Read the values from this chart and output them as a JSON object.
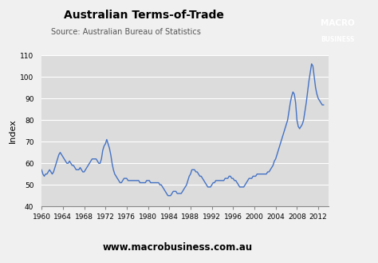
{
  "title": "Australian Terms-of-Trade",
  "subtitle": "Source: Australian Bureau of Statistics",
  "ylabel": "Index",
  "website": "www.macrobusiness.com.au",
  "line_color": "#4472C4",
  "bg_color": "#DCDCDC",
  "fig_color": "#F0F0F0",
  "ylim": [
    40,
    110
  ],
  "yticks": [
    40,
    50,
    60,
    70,
    80,
    90,
    100,
    110
  ],
  "xlim": [
    1960,
    2014
  ],
  "xticks": [
    1960,
    1964,
    1968,
    1972,
    1976,
    1980,
    1984,
    1988,
    1992,
    1996,
    2000,
    2004,
    2008,
    2012
  ],
  "logo_color": "#CC1111",
  "years": [
    1960.0,
    1960.25,
    1960.5,
    1960.75,
    1961.0,
    1961.25,
    1961.5,
    1961.75,
    1962.0,
    1962.25,
    1962.5,
    1962.75,
    1963.0,
    1963.25,
    1963.5,
    1963.75,
    1964.0,
    1964.25,
    1964.5,
    1964.75,
    1965.0,
    1965.25,
    1965.5,
    1965.75,
    1966.0,
    1966.25,
    1966.5,
    1966.75,
    1967.0,
    1967.25,
    1967.5,
    1967.75,
    1968.0,
    1968.25,
    1968.5,
    1968.75,
    1969.0,
    1969.25,
    1969.5,
    1969.75,
    1970.0,
    1970.25,
    1970.5,
    1970.75,
    1971.0,
    1971.25,
    1971.5,
    1971.75,
    1972.0,
    1972.25,
    1972.5,
    1972.75,
    1973.0,
    1973.25,
    1973.5,
    1973.75,
    1974.0,
    1974.25,
    1974.5,
    1974.75,
    1975.0,
    1975.25,
    1975.5,
    1975.75,
    1976.0,
    1976.25,
    1976.5,
    1976.75,
    1977.0,
    1977.25,
    1977.5,
    1977.75,
    1978.0,
    1978.25,
    1978.5,
    1978.75,
    1979.0,
    1979.25,
    1979.5,
    1979.75,
    1980.0,
    1980.25,
    1980.5,
    1980.75,
    1981.0,
    1981.25,
    1981.5,
    1981.75,
    1982.0,
    1982.25,
    1982.5,
    1982.75,
    1983.0,
    1983.25,
    1983.5,
    1983.75,
    1984.0,
    1984.25,
    1984.5,
    1984.75,
    1985.0,
    1985.25,
    1985.5,
    1985.75,
    1986.0,
    1986.25,
    1986.5,
    1986.75,
    1987.0,
    1987.25,
    1987.5,
    1987.75,
    1988.0,
    1988.25,
    1988.5,
    1988.75,
    1989.0,
    1989.25,
    1989.5,
    1989.75,
    1990.0,
    1990.25,
    1990.5,
    1990.75,
    1991.0,
    1991.25,
    1991.5,
    1991.75,
    1992.0,
    1992.25,
    1992.5,
    1992.75,
    1993.0,
    1993.25,
    1993.5,
    1993.75,
    1994.0,
    1994.25,
    1994.5,
    1994.75,
    1995.0,
    1995.25,
    1995.5,
    1995.75,
    1996.0,
    1996.25,
    1996.5,
    1996.75,
    1997.0,
    1997.25,
    1997.5,
    1997.75,
    1998.0,
    1998.25,
    1998.5,
    1998.75,
    1999.0,
    1999.25,
    1999.5,
    1999.75,
    2000.0,
    2000.25,
    2000.5,
    2000.75,
    2001.0,
    2001.25,
    2001.5,
    2001.75,
    2002.0,
    2002.25,
    2002.5,
    2002.75,
    2003.0,
    2003.25,
    2003.5,
    2003.75,
    2004.0,
    2004.25,
    2004.5,
    2004.75,
    2005.0,
    2005.25,
    2005.5,
    2005.75,
    2006.0,
    2006.25,
    2006.5,
    2006.75,
    2007.0,
    2007.25,
    2007.5,
    2007.75,
    2008.0,
    2008.25,
    2008.5,
    2008.75,
    2009.0,
    2009.25,
    2009.5,
    2009.75,
    2010.0,
    2010.25,
    2010.5,
    2010.75,
    2011.0,
    2011.25,
    2011.5,
    2011.75,
    2012.0,
    2012.25,
    2012.5,
    2012.75,
    2013.0
  ],
  "values": [
    57,
    55,
    54,
    55,
    55,
    56,
    57,
    56,
    55,
    56,
    58,
    60,
    62,
    64,
    65,
    64,
    63,
    62,
    61,
    60,
    60,
    61,
    60,
    59,
    59,
    58,
    57,
    57,
    57,
    58,
    57,
    56,
    56,
    57,
    58,
    59,
    60,
    61,
    62,
    62,
    62,
    62,
    61,
    60,
    60,
    62,
    66,
    68,
    69,
    71,
    69,
    67,
    64,
    60,
    57,
    55,
    54,
    53,
    52,
    51,
    51,
    52,
    53,
    53,
    53,
    52,
    52,
    52,
    52,
    52,
    52,
    52,
    52,
    52,
    51,
    51,
    51,
    51,
    51,
    52,
    52,
    52,
    51,
    51,
    51,
    51,
    51,
    51,
    51,
    50,
    50,
    49,
    48,
    47,
    46,
    45,
    45,
    45,
    46,
    47,
    47,
    47,
    46,
    46,
    46,
    46,
    47,
    48,
    49,
    50,
    52,
    54,
    55,
    57,
    57,
    57,
    56,
    56,
    55,
    54,
    54,
    53,
    52,
    51,
    50,
    49,
    49,
    49,
    50,
    51,
    51,
    52,
    52,
    52,
    52,
    52,
    52,
    52,
    53,
    53,
    53,
    54,
    54,
    53,
    53,
    52,
    52,
    51,
    50,
    49,
    49,
    49,
    49,
    50,
    51,
    52,
    53,
    53,
    53,
    54,
    54,
    54,
    55,
    55,
    55,
    55,
    55,
    55,
    55,
    55,
    56,
    56,
    57,
    58,
    59,
    61,
    62,
    64,
    66,
    68,
    70,
    72,
    74,
    76,
    78,
    80,
    84,
    88,
    91,
    93,
    92,
    88,
    80,
    77,
    76,
    77,
    78,
    80,
    84,
    88,
    93,
    98,
    102,
    106,
    105,
    100,
    95,
    92,
    90,
    89,
    88,
    87,
    87
  ]
}
